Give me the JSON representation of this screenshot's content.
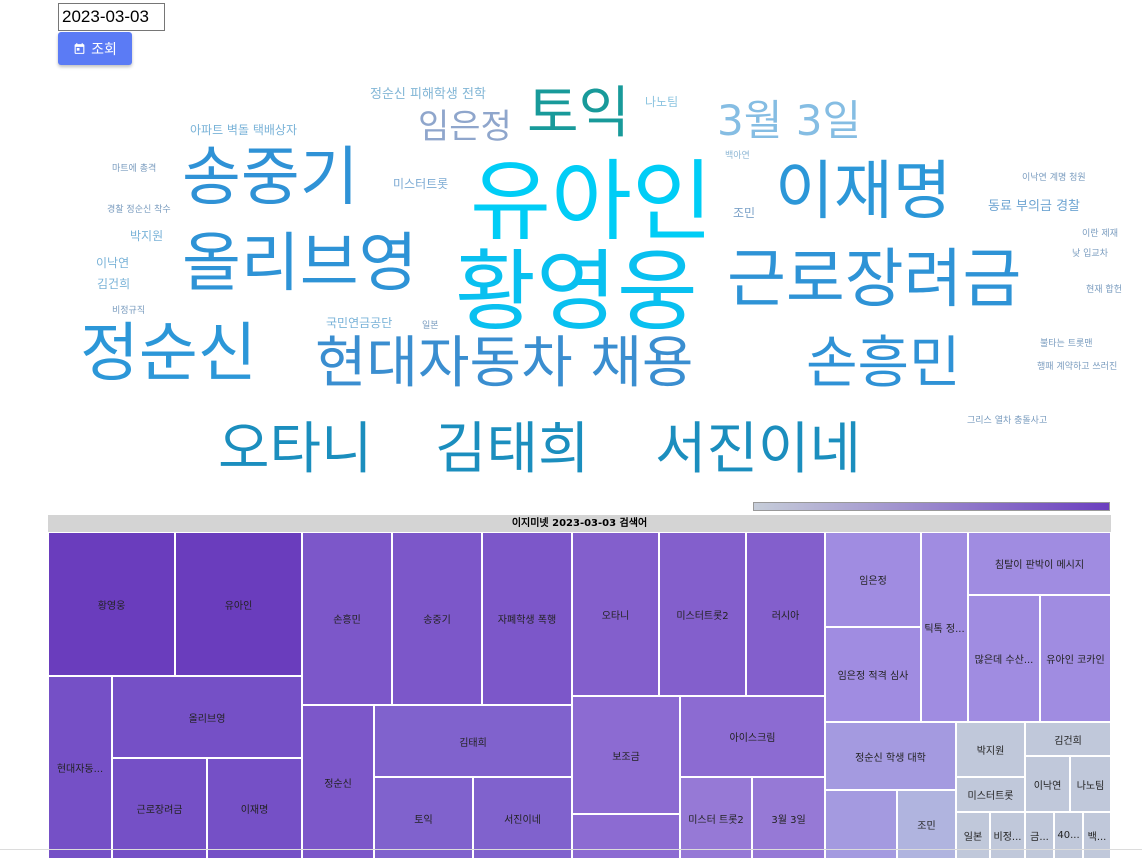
{
  "date_input": {
    "value": "2023-03-03"
  },
  "query_button": {
    "label": "조회",
    "icon": "calendar-icon"
  },
  "wordcloud": [
    {
      "text": "유아인",
      "color": "#00cdf6"
    },
    {
      "text": "황영웅",
      "color": "#09c0f0"
    },
    {
      "text": "송중기",
      "color": "#2f92d6"
    },
    {
      "text": "이재명",
      "color": "#2c97d8"
    },
    {
      "text": "올리브영",
      "color": "#2e93d6"
    },
    {
      "text": "근로장려금",
      "color": "#2e93d6"
    },
    {
      "text": "정순신",
      "color": "#2c97d8"
    },
    {
      "text": "현대자동차 채용",
      "color": "#3a8ed0"
    },
    {
      "text": "손흥민",
      "color": "#2f92d6"
    },
    {
      "text": "오타니",
      "color": "#1b8ebe"
    },
    {
      "text": "김태희",
      "color": "#1b8ebe"
    },
    {
      "text": "서진이네",
      "color": "#1b8ebe"
    },
    {
      "text": "토익",
      "color": "#189a9a"
    },
    {
      "text": "3월 3일",
      "color": "#85bde3"
    },
    {
      "text": "임은정",
      "color": "#8fa6cc"
    },
    {
      "text": "정순신 피해학생 전학",
      "color": "#82b6d6"
    },
    {
      "text": "나노팀",
      "color": "#8cc4e0"
    },
    {
      "text": "아파트 벽돌 택배상자",
      "color": "#7ab3d8"
    },
    {
      "text": "백아연",
      "color": "#8fb8d5"
    },
    {
      "text": "마트에 총격",
      "color": "#7a9cbf"
    },
    {
      "text": "미스터트롯",
      "color": "#7caad3"
    },
    {
      "text": "이낙연 계명 청원",
      "color": "#7a9cbf"
    },
    {
      "text": "경찰 정순신 착수",
      "color": "#7a9cbf"
    },
    {
      "text": "조민",
      "color": "#7ca2c8"
    },
    {
      "text": "동료 부의금 경찰",
      "color": "#6fa5d2"
    },
    {
      "text": "박지원",
      "color": "#7ab3d8"
    },
    {
      "text": "이란 제재",
      "color": "#7a9cbf"
    },
    {
      "text": "이낙연",
      "color": "#7ab3d8"
    },
    {
      "text": "낮 입교차",
      "color": "#7a9cbf"
    },
    {
      "text": "김건희",
      "color": "#7ab3d8"
    },
    {
      "text": "현재 합헌",
      "color": "#7a9cbf"
    },
    {
      "text": "비정규직",
      "color": "#7a9cbf"
    },
    {
      "text": "국민연금공단",
      "color": "#7ab3d8"
    },
    {
      "text": "일본",
      "color": "#7a9cbf"
    },
    {
      "text": "불타는 트롯맨",
      "color": "#7a9cbf"
    },
    {
      "text": "행패 계약하고 쓰러진",
      "color": "#7a9cbf"
    },
    {
      "text": "그리스 열차 충돌사고",
      "color": "#7a9cbf"
    }
  ],
  "treemap": {
    "title": "이지미넷 2023-03-03 검색어",
    "tiles": [
      {
        "label": "황영웅",
        "color": "#6a3dbd"
      },
      {
        "label": "유아인",
        "color": "#6a3dbd"
      },
      {
        "label": "현대자동...",
        "color": "#7550c6"
      },
      {
        "label": "올리브영",
        "color": "#7550c6"
      },
      {
        "label": "근로장려금",
        "color": "#7550c6"
      },
      {
        "label": "이재명",
        "color": "#7550c6"
      },
      {
        "label": "손흥민",
        "color": "#7c57c9"
      },
      {
        "label": "송중기",
        "color": "#7c57c9"
      },
      {
        "label": "자폐학생 폭행",
        "color": "#7c57c9"
      },
      {
        "label": "정순신",
        "color": "#7c57c9"
      },
      {
        "label": "김태희",
        "color": "#8062cd"
      },
      {
        "label": "토익",
        "color": "#8062cd"
      },
      {
        "label": "서진이네",
        "color": "#8062cd"
      },
      {
        "label": "오타니",
        "color": "#835fcc"
      },
      {
        "label": "미스터트롯2",
        "color": "#835fcc"
      },
      {
        "label": "러시아",
        "color": "#835fcc"
      },
      {
        "label": "보조금",
        "color": "#8c6bd2"
      },
      {
        "label": "",
        "color": "#8c6bd2"
      },
      {
        "label": "아이스크림",
        "color": "#8c6bd2"
      },
      {
        "label": "미스터 트롯2",
        "color": "#9679d6"
      },
      {
        "label": "3월 3일",
        "color": "#9679d6"
      },
      {
        "label": "임은정",
        "color": "#a08ce1"
      },
      {
        "label": "임은정 적격 심사",
        "color": "#a08ce1"
      },
      {
        "label": "틱톡 정...",
        "color": "#a08ce1"
      },
      {
        "label": "침탈이 판박이 메시지",
        "color": "#a08ce1"
      },
      {
        "label": "많은데 수산...",
        "color": "#a08ce1"
      },
      {
        "label": "유아인 코카인",
        "color": "#a08ce1"
      },
      {
        "label": "정순신 학생 대학",
        "color": "#a49ae0"
      },
      {
        "label": "",
        "color": "#a49ae0"
      },
      {
        "label": "조민",
        "color": "#b0b4df"
      },
      {
        "label": "박지원",
        "color": "#c0c8da"
      },
      {
        "label": "김건희",
        "color": "#c0c8da"
      },
      {
        "label": "미스터트롯",
        "color": "#c0c8da"
      },
      {
        "label": "이낙연",
        "color": "#c0c8da"
      },
      {
        "label": "나노팀",
        "color": "#c0c8da"
      },
      {
        "label": "일본",
        "color": "#c0c8da"
      },
      {
        "label": "비정...",
        "color": "#c0c8da"
      },
      {
        "label": "금...",
        "color": "#c0c8da"
      },
      {
        "label": "40...",
        "color": "#c0c8da"
      },
      {
        "label": "백...",
        "color": "#c0c8da"
      }
    ]
  }
}
